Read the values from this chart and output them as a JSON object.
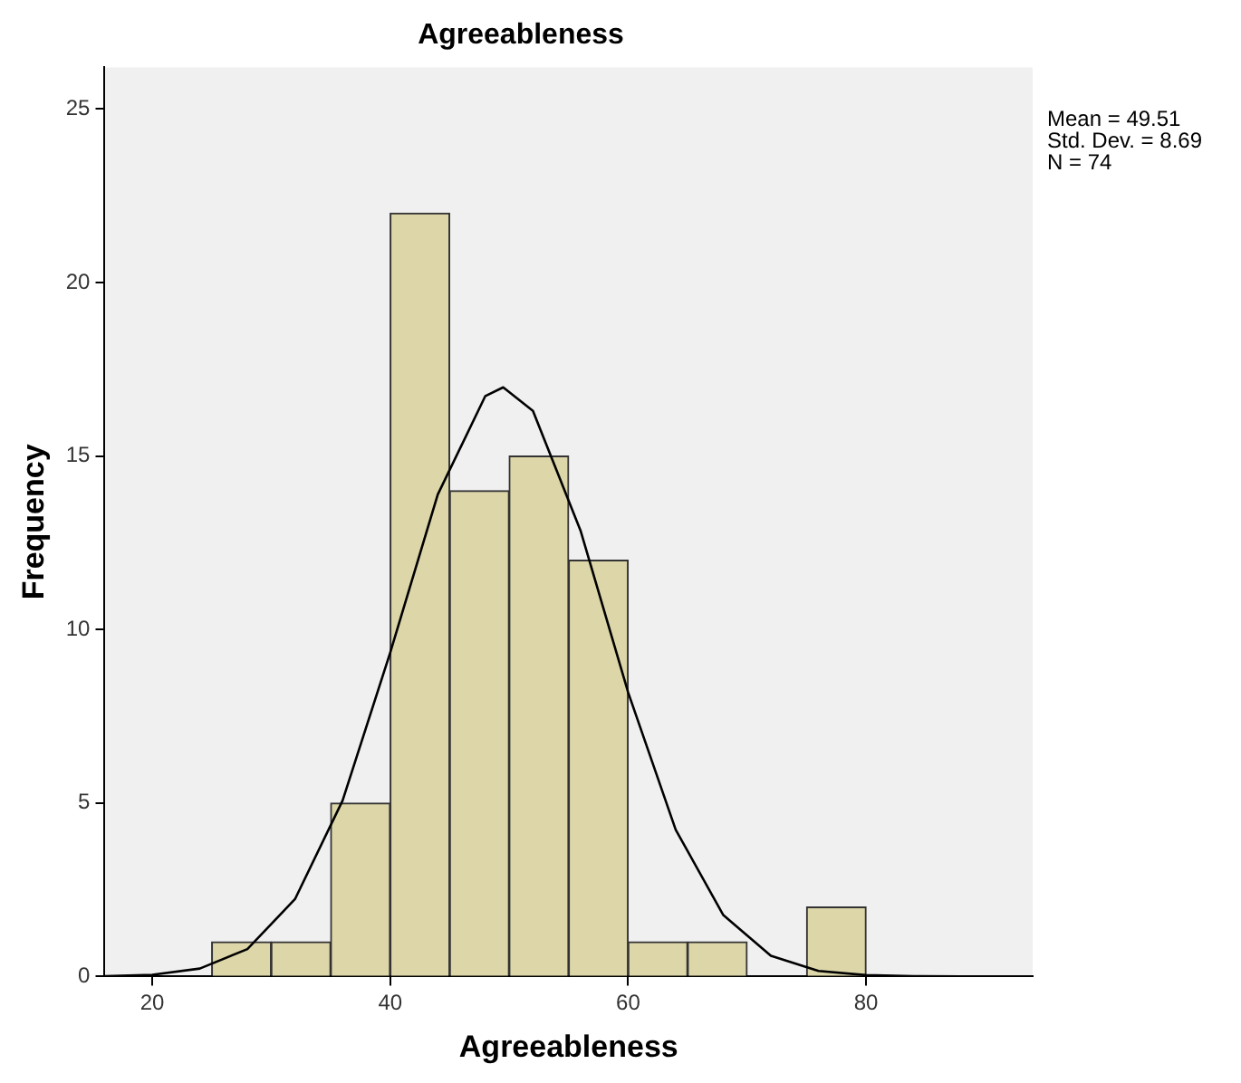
{
  "chart_data": {
    "type": "histogram",
    "title": "Agreeableness",
    "xlabel": "Agreeableness",
    "ylabel": "Frequency",
    "bins": [
      25,
      30,
      35,
      40,
      45,
      50,
      55,
      60,
      65,
      70,
      75,
      80
    ],
    "values": [
      1,
      1,
      5,
      22,
      14,
      15,
      12,
      1,
      1,
      0,
      2
    ],
    "color": "#dcd6a8",
    "series": [
      {
        "type": "line",
        "color": "#000000",
        "x": [
          16,
          20,
          24,
          28,
          32,
          36,
          40,
          44,
          48,
          49.5,
          52,
          56,
          60,
          64,
          68,
          72,
          76,
          80,
          84,
          88,
          94
        ],
        "values": [
          0.01,
          0.05,
          0.23,
          0.79,
          2.23,
          5.07,
          9.33,
          13.89,
          16.73,
          16.98,
          16.3,
          12.85,
          8.19,
          4.23,
          1.77,
          0.6,
          0.16,
          0.04,
          0.01,
          0,
          0
        ]
      }
    ],
    "xlim": [
      16,
      94
    ],
    "xticks": [
      20,
      40,
      60,
      80
    ],
    "ylim": [
      0,
      26.2
    ],
    "yticks": [
      0,
      5,
      10,
      15,
      20,
      25
    ],
    "grid": false,
    "legend": false,
    "marker": "none",
    "annotations": [
      "Mean = 49.51",
      "Std. Dev. = 8.69",
      "N = 74"
    ]
  }
}
